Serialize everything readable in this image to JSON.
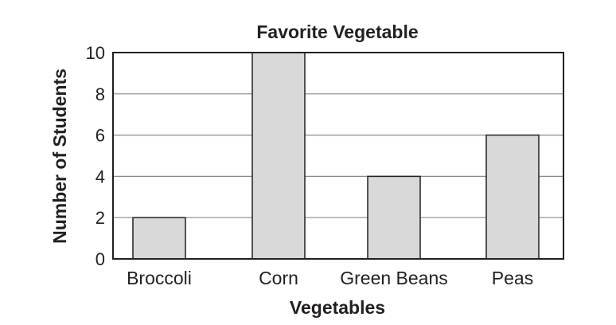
{
  "chart_data": {
    "type": "bar",
    "title": "Favorite Vegetable",
    "xlabel": "Vegetables",
    "ylabel": "Number of Students",
    "categories": [
      "Broccoli",
      "Corn",
      "Green Beans",
      "Peas"
    ],
    "values": [
      2,
      10,
      4,
      6
    ],
    "ylim": [
      0,
      10
    ],
    "yticks": [
      "0",
      "2",
      "4",
      "6",
      "8",
      "10"
    ],
    "grid": true,
    "legend": "none",
    "colors": {
      "bar_fill": "#d9d9d9",
      "bar_stroke": "#231f20",
      "gridline": "#8a8a8a",
      "frame": "#231f20",
      "text": "#231f20"
    }
  }
}
